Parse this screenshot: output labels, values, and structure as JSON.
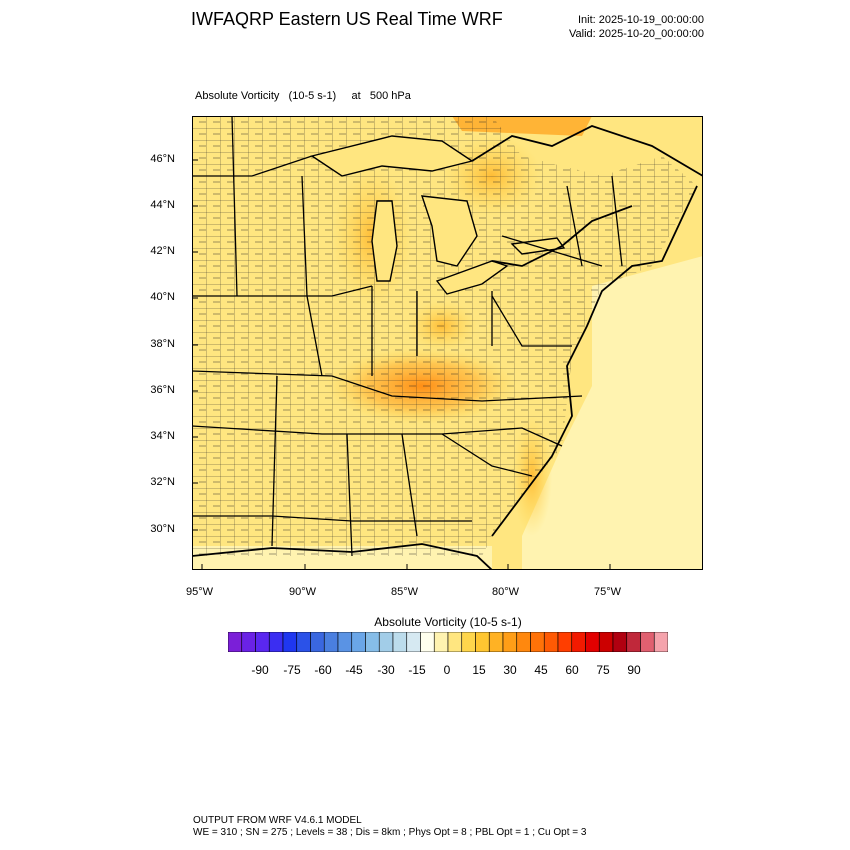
{
  "header": {
    "title": "IWFAQRP Eastern US Real Time WRF",
    "init": "Init: 2025-10-19_00:00:00",
    "valid": "Valid: 2025-10-20_00:00:00"
  },
  "plot": {
    "field_label": "Absolute Vorticity   (10-5 s-1)     at   500 hPa",
    "latitude_labels": [
      "46°N",
      "44°N",
      "42°N",
      "40°N",
      "38°N",
      "36°N",
      "34°N",
      "32°N",
      "30°N"
    ],
    "longitude_labels": [
      "95°W",
      "90°W",
      "85°W",
      "80°W",
      "75°W"
    ]
  },
  "colorbar": {
    "title": "Absolute Vorticity  (10-5 s-1)",
    "tick_labels": [
      "-90",
      "-75",
      "-60",
      "-45",
      "-30",
      "-15",
      "0",
      "15",
      "30",
      "45",
      "60",
      "75",
      "90"
    ],
    "colors": [
      "#7b1fd8",
      "#6a22e6",
      "#5a27f0",
      "#3b2ef2",
      "#1f37f0",
      "#2b52e8",
      "#3a67e0",
      "#4a7fe0",
      "#5a93e4",
      "#6aa6e8",
      "#86bde8",
      "#a2cde8",
      "#bcdcec",
      "#d6e9f2",
      "#ffffee",
      "#fff3b0",
      "#ffe680",
      "#ffd64c",
      "#ffc631",
      "#ffb224",
      "#ff9e17",
      "#ff880e",
      "#ff7208",
      "#ff5a04",
      "#ff3e00",
      "#f21a00",
      "#e20000",
      "#cc0000",
      "#b00010",
      "#c0283a",
      "#e06070",
      "#f5a3ac"
    ]
  },
  "footer": {
    "line1": "OUTPUT FROM WRF V4.6.1 MODEL",
    "line2": "WE = 310 ; SN = 275 ; Levels = 38 ; Dis = 8km ; Phys Opt = 8 ; PBL Opt = 1 ; Cu Opt = 3"
  }
}
